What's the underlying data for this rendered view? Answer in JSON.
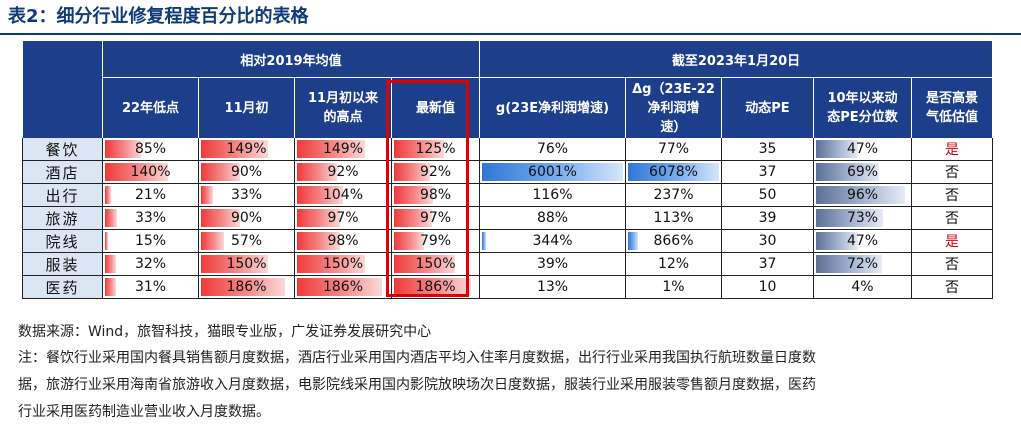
{
  "title": "表2：细分行业修复程度百分比的表格",
  "header": {
    "group1": "相对2019年均值",
    "group2": "截至2023年1月20日",
    "columns": [
      {
        "key": "low22",
        "lines": [
          "22年低点"
        ]
      },
      {
        "key": "nov",
        "lines": [
          "11月初"
        ]
      },
      {
        "key": "high",
        "lines": [
          "11月初以来",
          "的高点"
        ]
      },
      {
        "key": "latest",
        "lines": [
          "最新值"
        ]
      },
      {
        "key": "g23",
        "lines": [
          "g(23E净利润增速)"
        ]
      },
      {
        "key": "dg",
        "lines": [
          "Δg（23E-22",
          "净利润增",
          "速）"
        ]
      },
      {
        "key": "pe",
        "lines": [
          "动态PE"
        ]
      },
      {
        "key": "pct",
        "lines": [
          "10年以来动",
          "态PE分位数"
        ]
      },
      {
        "key": "low",
        "lines": [
          "是否高景",
          "气低估值"
        ]
      }
    ]
  },
  "rows": [
    {
      "name": "餐饮",
      "low22": "85%",
      "nov": "149%",
      "high": "149%",
      "latest": "125%",
      "g23": "76%",
      "dg": "77%",
      "pe": "35",
      "pct": "47%",
      "low": "是"
    },
    {
      "name": "酒店",
      "low22": "140%",
      "nov": "90%",
      "high": "92%",
      "latest": "92%",
      "g23": "6001%",
      "dg": "6078%",
      "pe": "37",
      "pct": "69%",
      "low": "否"
    },
    {
      "name": "出行",
      "low22": "21%",
      "nov": "33%",
      "high": "104%",
      "latest": "98%",
      "g23": "116%",
      "dg": "237%",
      "pe": "50",
      "pct": "96%",
      "low": "否"
    },
    {
      "name": "旅游",
      "low22": "33%",
      "nov": "90%",
      "high": "97%",
      "latest": "97%",
      "g23": "88%",
      "dg": "113%",
      "pe": "39",
      "pct": "73%",
      "low": "否"
    },
    {
      "name": "院线",
      "low22": "15%",
      "nov": "57%",
      "high": "98%",
      "latest": "79%",
      "g23": "344%",
      "dg": "866%",
      "pe": "30",
      "pct": "47%",
      "low": "是"
    },
    {
      "name": "服装",
      "low22": "32%",
      "nov": "150%",
      "high": "150%",
      "latest": "150%",
      "g23": "39%",
      "dg": "12%",
      "pe": "37",
      "pct": "72%",
      "low": "否"
    },
    {
      "name": "医药",
      "low22": "31%",
      "nov": "186%",
      "high": "186%",
      "latest": "186%",
      "g23": "13%",
      "dg": "1%",
      "pe": "10",
      "pct": "4%",
      "low": "否"
    }
  ],
  "bar_colors": {
    "red": "#f03a3a",
    "blue": "#2f77d6",
    "gray": "#5c6f95",
    "yes_text": "#e60012",
    "header_bg": "#1d3e8a",
    "label_bg": "#dbe6f4",
    "highlight": "#e00000"
  },
  "source": "数据来源：Wind，旅智科技，猫眼专业版，广发证券发展研究中心",
  "notes": [
    "注：餐饮行业采用国内餐具销售额月度数据，酒店行业采用国内酒店平均入住率月度数据，出行行业采用我国执行航班数量日度数",
    "据，旅游行业采用海南省旅游收入月度数据，电影院线采用国内影院放映场次日度数据，服装行业采用服装零售额月度数据，医药",
    "行业采用医药制造业营业收入月度数据。"
  ]
}
